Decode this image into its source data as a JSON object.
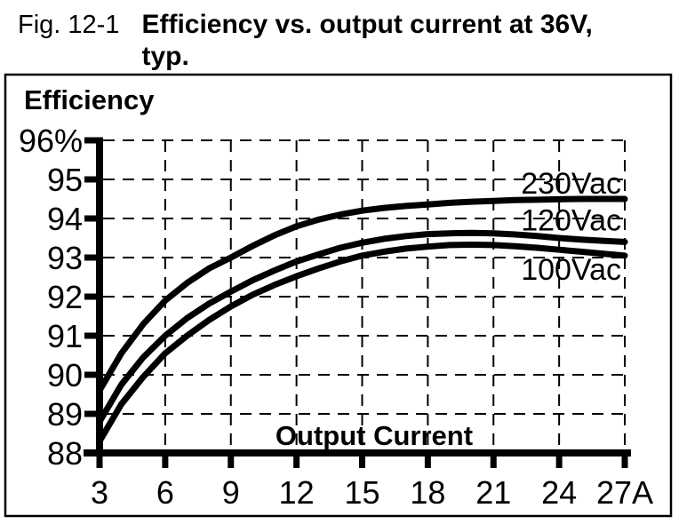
{
  "figure": {
    "label": "Fig. 12-1",
    "title_line1": "Efficiency vs. output current at 36V,",
    "title_line2": "typ."
  },
  "chart_data": {
    "type": "line",
    "title": "Efficiency",
    "xlabel": "Output Current",
    "ylabel": "Efficiency",
    "x_unit": "A",
    "y_unit": "%",
    "xlim": [
      3,
      27
    ],
    "ylim": [
      88,
      96
    ],
    "x_ticks": [
      3,
      6,
      9,
      12,
      15,
      18,
      21,
      24,
      27
    ],
    "x_tick_labels": [
      "3",
      "6",
      "9",
      "12",
      "15",
      "18",
      "21",
      "24",
      "27A"
    ],
    "y_ticks": [
      96,
      95,
      94,
      93,
      92,
      91,
      90,
      89,
      88
    ],
    "y_tick_labels": [
      "96%",
      "95",
      "94",
      "93",
      "92",
      "91",
      "90",
      "89",
      "88"
    ],
    "grid": "dashed",
    "legend_position": "right-inline",
    "ink_color": "#000000",
    "background_color": "#ffffff",
    "x": [
      3,
      4,
      5,
      6,
      7,
      8,
      9,
      10,
      11,
      12,
      13,
      14,
      15,
      16,
      17,
      18,
      19,
      20,
      21,
      22,
      23,
      24,
      25,
      26,
      27
    ],
    "series": [
      {
        "name": "230Vac",
        "label_dy": -6,
        "values": [
          89.6,
          90.55,
          91.3,
          91.9,
          92.35,
          92.72,
          93.0,
          93.3,
          93.57,
          93.8,
          93.97,
          94.1,
          94.2,
          94.27,
          94.32,
          94.36,
          94.4,
          94.43,
          94.45,
          94.47,
          94.48,
          94.49,
          94.5,
          94.5,
          94.5
        ]
      },
      {
        "name": "120Vac",
        "label_dy": -13,
        "values": [
          88.8,
          89.75,
          90.45,
          91.0,
          91.45,
          91.82,
          92.13,
          92.42,
          92.67,
          92.9,
          93.08,
          93.25,
          93.38,
          93.48,
          93.55,
          93.6,
          93.62,
          93.63,
          93.62,
          93.59,
          93.55,
          93.5,
          93.46,
          93.43,
          93.4
        ]
      },
      {
        "name": "100Vac",
        "label_dy": 27,
        "values": [
          88.3,
          89.25,
          89.95,
          90.55,
          91.0,
          91.4,
          91.75,
          92.05,
          92.3,
          92.52,
          92.72,
          92.9,
          93.05,
          93.15,
          93.23,
          93.28,
          93.32,
          93.33,
          93.32,
          93.29,
          93.25,
          93.2,
          93.15,
          93.1,
          93.05
        ]
      }
    ]
  }
}
